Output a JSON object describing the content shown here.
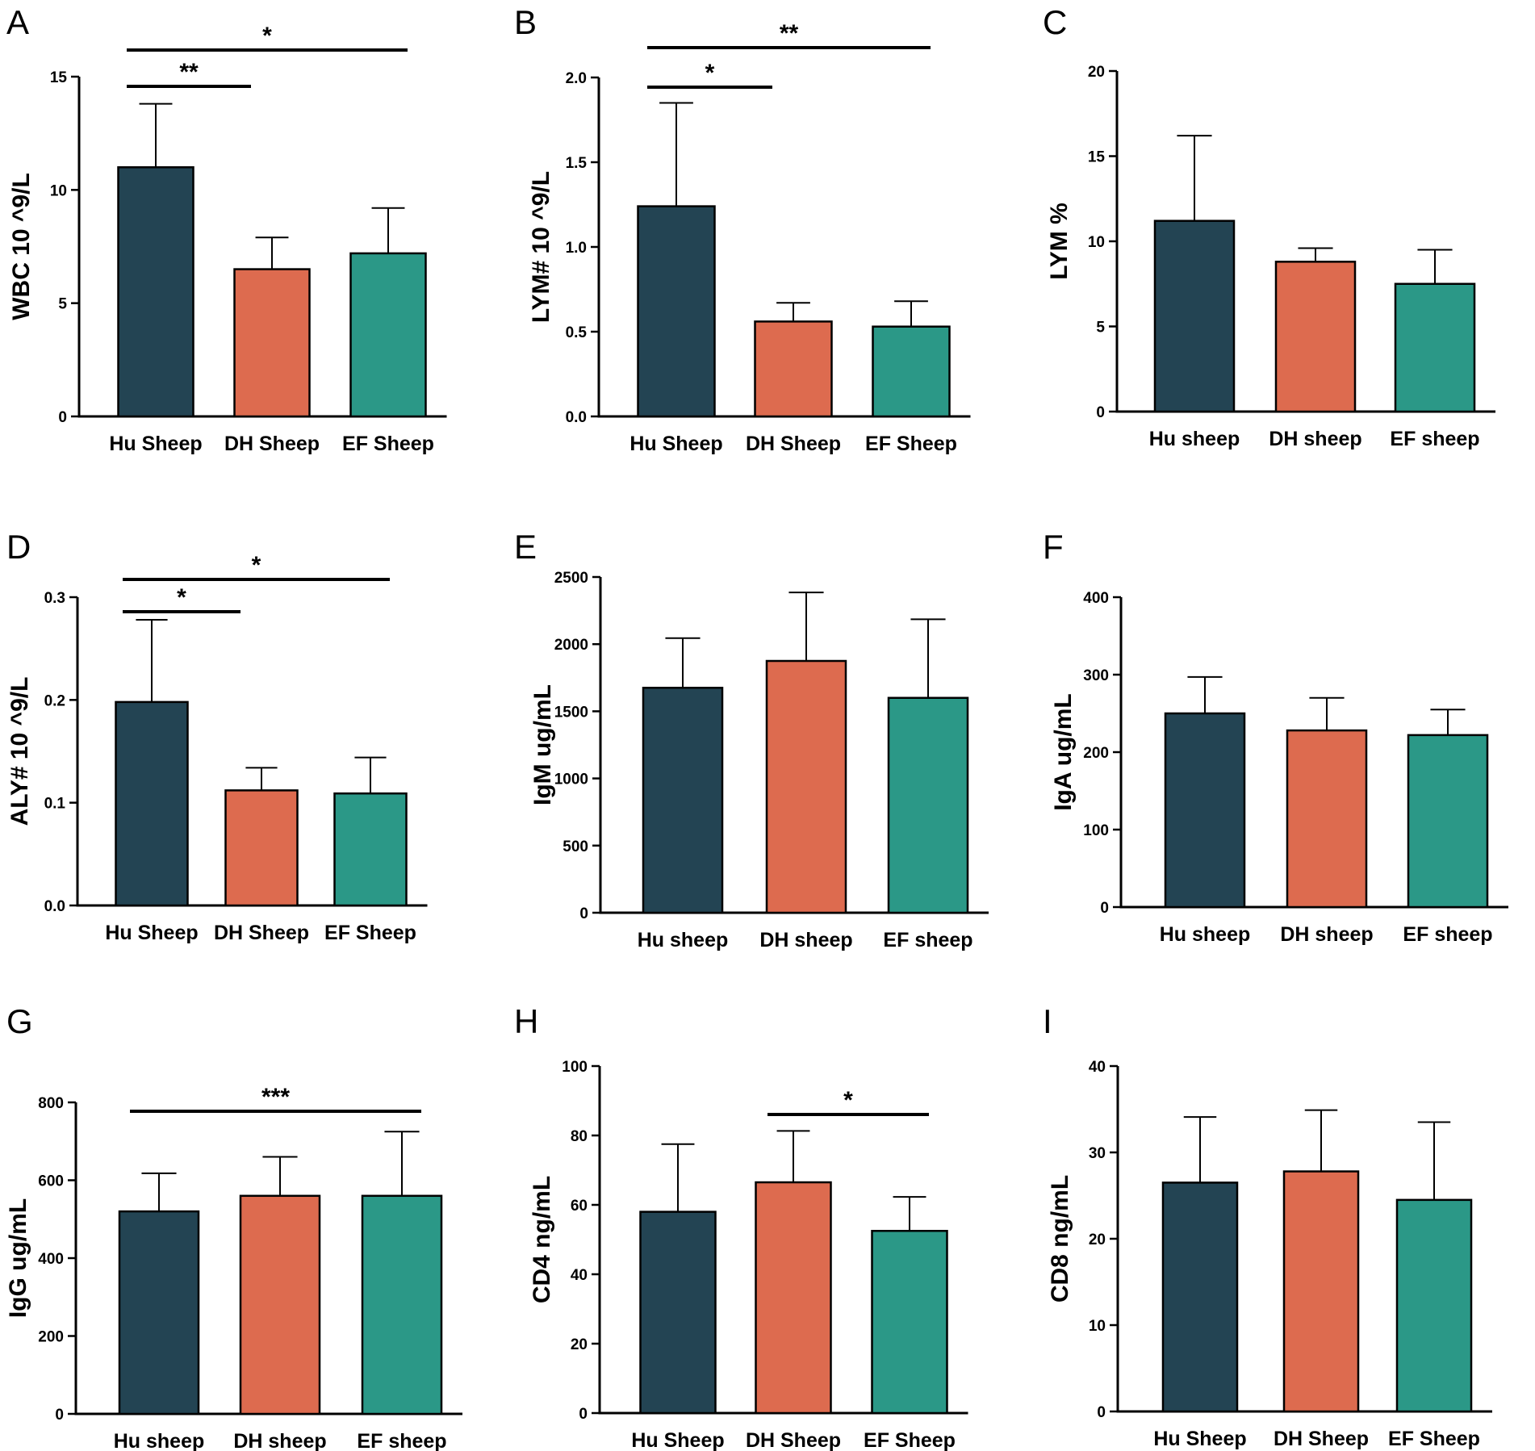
{
  "colors": {
    "hu": "#234453",
    "dh": "#dd6b4f",
    "ef": "#2b9887",
    "stroke": "#000000"
  },
  "chart_data": [
    {
      "panel": "A",
      "type": "bar",
      "ylabel": "WBC 10 ^9/L",
      "ylim": [
        0,
        15
      ],
      "yticks": [
        "0",
        "5",
        "10",
        "15"
      ],
      "ytick_values": [
        0,
        5,
        10,
        15
      ],
      "categories": [
        "Hu Sheep",
        "DH Sheep",
        "EF Sheep"
      ],
      "values": [
        11.0,
        6.5,
        7.2
      ],
      "errors": [
        2.8,
        1.4,
        2.0
      ],
      "significance": [
        {
          "from": 0,
          "to": 1,
          "label": "**"
        },
        {
          "from": 0,
          "to": 2,
          "label": "*"
        }
      ]
    },
    {
      "panel": "B",
      "type": "bar",
      "ylabel": "LYM# 10 ^9/L",
      "ylim": [
        0,
        2.0
      ],
      "yticks": [
        "0.0",
        "0.5",
        "1.0",
        "1.5",
        "2.0"
      ],
      "ytick_values": [
        0,
        0.5,
        1.0,
        1.5,
        2.0
      ],
      "categories": [
        "Hu Sheep",
        "DH Sheep",
        "EF Sheep"
      ],
      "values": [
        1.24,
        0.56,
        0.53
      ],
      "errors": [
        0.61,
        0.11,
        0.15
      ],
      "significance": [
        {
          "from": 0,
          "to": 1,
          "label": "*"
        },
        {
          "from": 0,
          "to": 2,
          "label": "**"
        }
      ]
    },
    {
      "panel": "C",
      "type": "bar",
      "ylabel": "LYM %",
      "ylim": [
        0,
        20
      ],
      "yticks": [
        "0",
        "5",
        "10",
        "15",
        "20"
      ],
      "ytick_values": [
        0,
        5,
        10,
        15,
        20
      ],
      "categories": [
        "Hu sheep",
        "DH sheep",
        "EF sheep"
      ],
      "values": [
        11.2,
        8.8,
        7.5
      ],
      "errors": [
        5.0,
        0.8,
        2.0
      ],
      "significance": []
    },
    {
      "panel": "D",
      "type": "bar",
      "ylabel": "ALY# 10 ^9/L",
      "ylim": [
        0,
        0.3
      ],
      "yticks": [
        "0.0",
        "0.1",
        "0.2",
        "0.3"
      ],
      "ytick_values": [
        0,
        0.1,
        0.2,
        0.3
      ],
      "categories": [
        "Hu Sheep",
        "DH Sheep",
        "EF Sheep"
      ],
      "values": [
        0.198,
        0.112,
        0.109
      ],
      "errors": [
        0.08,
        0.022,
        0.035
      ],
      "significance": [
        {
          "from": 0,
          "to": 1,
          "label": "*"
        },
        {
          "from": 0,
          "to": 2,
          "label": "*"
        }
      ]
    },
    {
      "panel": "E",
      "type": "bar",
      "ylabel": "IgM ug/mL",
      "ylim": [
        0,
        2500
      ],
      "yticks": [
        "0",
        "500",
        "1000",
        "1500",
        "2000",
        "2500"
      ],
      "ytick_values": [
        0,
        500,
        1000,
        1500,
        2000,
        2500
      ],
      "categories": [
        "Hu sheep",
        "DH sheep",
        "EF sheep"
      ],
      "values": [
        1675,
        1875,
        1600
      ],
      "errors": [
        370,
        510,
        585
      ],
      "significance": []
    },
    {
      "panel": "F",
      "type": "bar",
      "ylabel": "IgA ug/mL",
      "ylim": [
        0,
        400
      ],
      "yticks": [
        "0",
        "100",
        "200",
        "300",
        "400"
      ],
      "ytick_values": [
        0,
        100,
        200,
        300,
        400
      ],
      "categories": [
        "Hu sheep",
        "DH sheep",
        "EF sheep"
      ],
      "values": [
        250,
        228,
        222
      ],
      "errors": [
        47,
        42,
        33
      ],
      "significance": []
    },
    {
      "panel": "G",
      "type": "bar",
      "ylabel": "IgG ug/mL",
      "ylim": [
        0,
        800
      ],
      "yticks": [
        "0",
        "200",
        "400",
        "600",
        "800"
      ],
      "ytick_values": [
        0,
        200,
        400,
        600,
        800
      ],
      "categories": [
        "Hu sheep",
        "DH sheep",
        "EF sheep"
      ],
      "values": [
        520,
        560,
        560
      ],
      "errors": [
        98,
        100,
        165
      ],
      "significance": [
        {
          "from": 0,
          "to": 2,
          "label": "***"
        }
      ]
    },
    {
      "panel": "H",
      "type": "bar",
      "ylabel": "CD4 ng/mL",
      "ylim": [
        0,
        100
      ],
      "yticks": [
        "0",
        "20",
        "40",
        "60",
        "80",
        "100"
      ],
      "ytick_values": [
        0,
        20,
        40,
        60,
        80,
        100
      ],
      "categories": [
        "Hu Sheep",
        "DH Sheep",
        "EF Sheep"
      ],
      "values": [
        58,
        66.5,
        52.5
      ],
      "errors": [
        19.5,
        14.8,
        9.8
      ],
      "significance": [
        {
          "from": 1,
          "to": 2,
          "label": "*"
        }
      ]
    },
    {
      "panel": "I",
      "type": "bar",
      "ylabel": "CD8 ng/mL",
      "ylim": [
        0,
        40
      ],
      "yticks": [
        "0",
        "10",
        "20",
        "30",
        "40"
      ],
      "ytick_values": [
        0,
        10,
        20,
        30,
        40
      ],
      "categories": [
        "Hu Sheep",
        "DH Sheep",
        "EF Sheep"
      ],
      "values": [
        26.5,
        27.8,
        24.5
      ],
      "errors": [
        7.6,
        7.1,
        9.0
      ],
      "significance": []
    }
  ]
}
